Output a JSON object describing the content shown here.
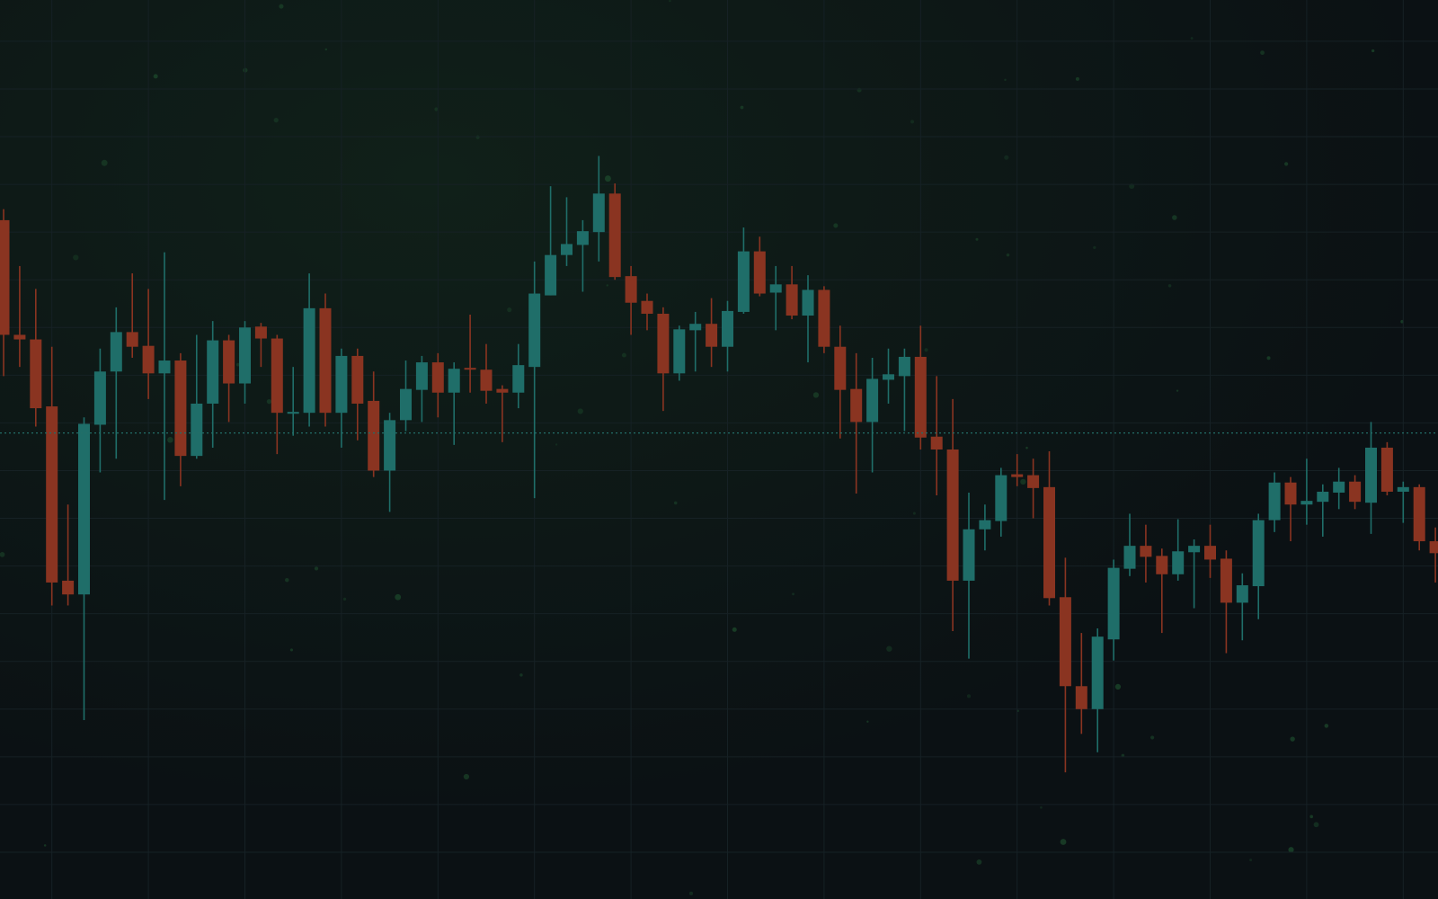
{
  "chart_data": {
    "type": "candlestick",
    "open": [
      760,
      635,
      630,
      557,
      367,
      352,
      537,
      595,
      638,
      623,
      593,
      607,
      503,
      560,
      629,
      582,
      644,
      631,
      549,
      550,
      664,
      550,
      612,
      563,
      487,
      542,
      575,
      605,
      572,
      599,
      597,
      576,
      572,
      600,
      678,
      722,
      733,
      747,
      789,
      699,
      672,
      658,
      593,
      640,
      647,
      622,
      660,
      726,
      681,
      690,
      656,
      684,
      622,
      576,
      540,
      586,
      590,
      611,
      524,
      510,
      367,
      423,
      432,
      483,
      482,
      469,
      349,
      252,
      227,
      303,
      380,
      405,
      394,
      374,
      398,
      405,
      391,
      343,
      361,
      433,
      474,
      450,
      453,
      463,
      475,
      452,
      512,
      464,
      469,
      410
    ],
    "high": [
      772,
      710,
      685,
      622,
      450,
      545,
      620,
      665,
      702,
      685,
      725,
      615,
      635,
      650,
      635,
      650,
      648,
      635,
      600,
      702,
      680,
      620,
      620,
      595,
      550,
      607,
      612,
      615,
      605,
      657,
      625,
      580,
      625,
      715,
      797,
      785,
      760,
      830,
      800,
      710,
      680,
      665,
      645,
      660,
      675,
      672,
      752,
      742,
      710,
      710,
      700,
      688,
      645,
      615,
      610,
      620,
      620,
      645,
      590,
      565,
      463,
      450,
      490,
      505,
      500,
      508,
      392,
      310,
      315,
      390,
      440,
      428,
      402,
      434,
      412,
      428,
      400,
      375,
      440,
      485,
      480,
      500,
      472,
      490,
      482,
      540,
      518,
      475,
      472,
      425
    ],
    "low": [
      590,
      600,
      535,
      340,
      340,
      215,
      485,
      500,
      610,
      565,
      455,
      470,
      500,
      512,
      540,
      560,
      600,
      505,
      525,
      535,
      535,
      512,
      520,
      480,
      442,
      530,
      540,
      545,
      515,
      572,
      560,
      518,
      555,
      457,
      678,
      710,
      682,
      715,
      695,
      635,
      640,
      552,
      585,
      595,
      600,
      595,
      658,
      677,
      640,
      652,
      605,
      615,
      522,
      462,
      485,
      560,
      530,
      510,
      460,
      312,
      282,
      400,
      415,
      470,
      435,
      340,
      158,
      200,
      180,
      280,
      372,
      365,
      310,
      367,
      337,
      370,
      288,
      302,
      325,
      420,
      410,
      428,
      415,
      445,
      445,
      418,
      460,
      430,
      400,
      365
    ],
    "close": [
      635,
      630,
      555,
      365,
      352,
      538,
      595,
      638,
      622,
      593,
      607,
      503,
      560,
      629,
      582,
      643,
      631,
      550,
      551,
      664,
      550,
      612,
      560,
      487,
      542,
      576,
      605,
      572,
      598,
      597,
      574,
      572,
      602,
      680,
      722,
      734,
      748,
      789,
      698,
      670,
      658,
      593,
      641,
      647,
      622,
      661,
      726,
      680,
      690,
      656,
      684,
      622,
      575,
      540,
      587,
      592,
      611,
      523,
      510,
      367,
      423,
      433,
      482,
      480,
      468,
      348,
      252,
      227,
      306,
      381,
      405,
      393,
      374,
      399,
      405,
      390,
      343,
      362,
      433,
      474,
      450,
      454,
      464,
      475,
      453,
      512,
      464,
      469,
      410,
      397
    ],
    "ylim": [
      20,
      1000
    ],
    "yticks": [
      955,
      903,
      851,
      799,
      747,
      695,
      643,
      591,
      539,
      487,
      435,
      383,
      331,
      279,
      227,
      175,
      123,
      71
    ],
    "grid": true,
    "up_color": "#1f6e69",
    "down_color": "#8a3421",
    "grid_color": "#162125",
    "price_line": 528,
    "price_line_color": "#236e68"
  }
}
